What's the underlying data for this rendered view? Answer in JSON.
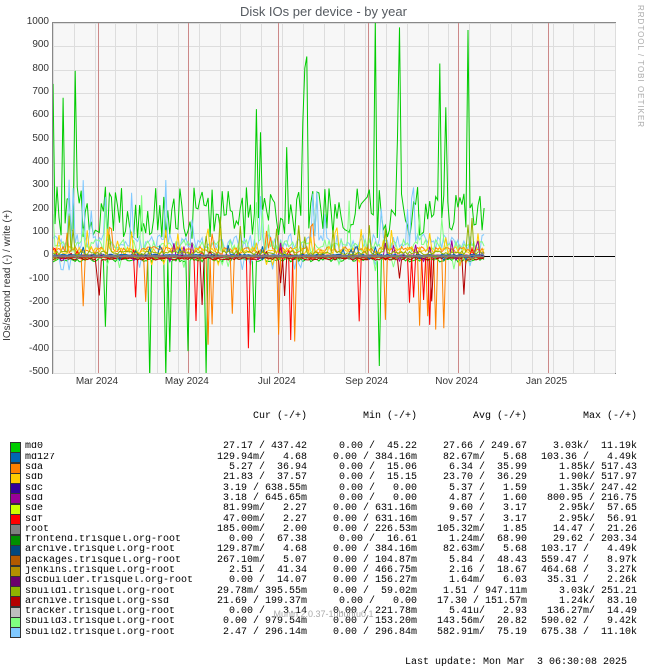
{
  "title": "Disk IOs per device - by year",
  "watermark": "RRDTOOL / TOBI OETIKER",
  "ylabel": "IOs/second read (-) / write (+)",
  "footer": "Munin 2.0.37-1ubuntu0.1",
  "last_update": "Last update: Mon Mar  3 06:30:08 2025",
  "ylim": [
    -500,
    1000
  ],
  "yticks": [
    -500,
    -400,
    -300,
    -200,
    -100,
    0,
    100,
    200,
    300,
    400,
    500,
    600,
    700,
    800,
    900,
    1000
  ],
  "xticks": [
    "Mar 2024",
    "May 2024",
    "Jul 2024",
    "Sep 2024",
    "Nov 2024",
    "Jan 2025"
  ],
  "xtick_positions": [
    0.08,
    0.24,
    0.4,
    0.56,
    0.72,
    0.88
  ],
  "chart_bg": "#f7f7f7",
  "grid_color": "#dddddd",
  "major_vgrid_color": "#cc8888",
  "columns": [
    "Cur (-/+)",
    "Min (-/+)",
    "Avg (-/+)",
    "Max (-/+)"
  ],
  "series": [
    {
      "name": "md0",
      "color": "#00cc00",
      "cur": "27.17 / 437.42",
      "min": "0.00 /  45.22",
      "avg": "27.66 / 249.67",
      "max": "3.03k/  11.19k"
    },
    {
      "name": "md127",
      "color": "#0066b3",
      "cur": "129.94m/   4.68",
      "min": "0.00 / 384.16m",
      "avg": "82.67m/   5.68",
      "max": "103.36 /   4.49k"
    },
    {
      "name": "sda",
      "color": "#ff8000",
      "cur": "5.27 /  36.94",
      "min": "0.00 /  15.06",
      "avg": "6.34 /  35.99",
      "max": "1.85k/ 517.43"
    },
    {
      "name": "sdb",
      "color": "#ffcc00",
      "cur": "21.83 /  37.57",
      "min": "0.00 /  15.15",
      "avg": "23.70 /  36.29",
      "max": "1.90k/ 517.97"
    },
    {
      "name": "sdc",
      "color": "#330099",
      "cur": "3.19 / 638.55m",
      "min": "0.00 /   0.00",
      "avg": "5.37 /   1.59",
      "max": "1.35k/ 247.42"
    },
    {
      "name": "sdd",
      "color": "#990099",
      "cur": "3.18 / 645.65m",
      "min": "0.00 /   0.00",
      "avg": "4.87 /   1.60",
      "max": "800.95 / 216.75"
    },
    {
      "name": "sde",
      "color": "#ccff00",
      "cur": "81.99m/   2.27",
      "min": "0.00 / 631.16m",
      "avg": "9.60 /   3.17",
      "max": "2.95k/  57.65"
    },
    {
      "name": "sdf",
      "color": "#ff0000",
      "cur": "47.00m/   2.27",
      "min": "0.00 / 631.16m",
      "avg": "9.57 /   3.17",
      "max": "2.95k/  56.91"
    },
    {
      "name": "root",
      "color": "#808080",
      "cur": "185.00m/   2.00",
      "min": "0.00 / 226.53m",
      "avg": "105.32m/   1.85",
      "max": "14.47 /  21.26"
    },
    {
      "name": "frontend.trisquel.org-root",
      "color": "#008f00",
      "cur": "0.00 /  67.38",
      "min": "0.00 /  16.61",
      "avg": "1.24m/  68.90",
      "max": "29.62 / 203.34"
    },
    {
      "name": "archive.trisquel.org-root",
      "color": "#00487d",
      "cur": "129.87m/   4.68",
      "min": "0.00 / 384.16m",
      "avg": "82.63m/   5.68",
      "max": "103.17 /   4.49k"
    },
    {
      "name": "packages.trisquel.org-root",
      "color": "#b35a00",
      "cur": "267.10m/   5.07",
      "min": "0.00 / 104.87m",
      "avg": "5.84 /  48.43",
      "max": "559.47 /   8.97k"
    },
    {
      "name": "jenkins.trisquel.org-root",
      "color": "#b38f00",
      "cur": "2.51 /  41.34",
      "min": "0.00 / 466.75m",
      "avg": "2.16 /  18.67",
      "max": "464.68 /   3.27k"
    },
    {
      "name": "dscbuilder.trisquel.org-root",
      "color": "#6b006b",
      "cur": "0.00 /  14.07",
      "min": "0.00 / 156.27m",
      "avg": "1.64m/   6.03",
      "max": "35.31 /   2.26k"
    },
    {
      "name": "sbuild1.trisquel.org-root",
      "color": "#8fb300",
      "cur": "29.78m/ 395.55m",
      "min": "0.00 /  59.02m",
      "avg": "1.51 / 947.11m",
      "max": "3.03k/ 251.21"
    },
    {
      "name": "archive.trisquel.org-ssd",
      "color": "#b30000",
      "cur": "21.69 / 199.37m",
      "min": "0.00 /   0.00",
      "avg": "17.30 / 151.57m",
      "max": "1.24k/  83.10"
    },
    {
      "name": "tracker.trisquel.org-root",
      "color": "#bebebe",
      "cur": "0.00 /   3.14",
      "min": "0.00 / 221.78m",
      "avg": "5.41u/   2.93",
      "max": "136.27m/  14.49"
    },
    {
      "name": "sbuild3.trisquel.org-root",
      "color": "#80ff80",
      "cur": "0.00 / 979.54m",
      "min": "0.00 / 153.20m",
      "avg": "143.56m/  20.82",
      "max": "590.02 /   9.42k"
    },
    {
      "name": "sbuild2.trisquel.org-root",
      "color": "#80c9ff",
      "cur": "2.47 / 296.14m",
      "min": "0.00 / 296.84m",
      "avg": "582.91m/  75.19",
      "max": "675.38 /  11.10k"
    }
  ]
}
